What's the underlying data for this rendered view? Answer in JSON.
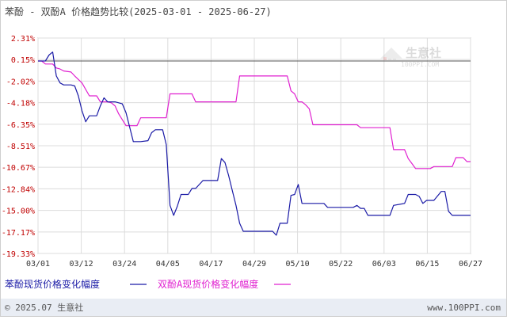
{
  "chart_data": {
    "type": "line",
    "title": "苯酚 - 双酚A 价格趋势比较(2025-03-01 - 2025-06-27)",
    "y_ticks": [
      "2.31%",
      "0.15%",
      "-2.02%",
      "-4.18%",
      "-6.35%",
      "-8.51%",
      "-10.67%",
      "-12.84%",
      "-15.00%",
      "-17.17%",
      "-19.33%"
    ],
    "y_tick_values": [
      2.31,
      0.15,
      -2.02,
      -4.18,
      -6.35,
      -8.51,
      -10.67,
      -12.84,
      -15.0,
      -17.17,
      -19.33
    ],
    "ylim": [
      -19.33,
      2.31
    ],
    "x_ticks": [
      "03/01",
      "03/12",
      "03/24",
      "04/05",
      "04/17",
      "04/29",
      "05/10",
      "05/22",
      "06/03",
      "06/15",
      "06/27"
    ],
    "xlim": [
      "2025-03-01",
      "2025-06-27"
    ],
    "grid": true,
    "legend_position": "bottom-left",
    "series": [
      {
        "name": "苯酚现货价格变化幅度",
        "color": "#1a1aa6",
        "points": [
          [
            "2025-03-01",
            0
          ],
          [
            "2025-03-02",
            0
          ],
          [
            "2025-03-03",
            0
          ],
          [
            "2025-03-04",
            0.6
          ],
          [
            "2025-03-05",
            0.9
          ],
          [
            "2025-03-06",
            -1.5
          ],
          [
            "2025-03-07",
            -2.2
          ],
          [
            "2025-03-08",
            -2.4
          ],
          [
            "2025-03-10",
            -2.4
          ],
          [
            "2025-03-11",
            -2.5
          ],
          [
            "2025-03-12",
            -3.5
          ],
          [
            "2025-03-13",
            -5.0
          ],
          [
            "2025-03-14",
            -6.1
          ],
          [
            "2025-03-15",
            -5.5
          ],
          [
            "2025-03-17",
            -5.5
          ],
          [
            "2025-03-18",
            -4.5
          ],
          [
            "2025-03-19",
            -3.7
          ],
          [
            "2025-03-20",
            -4.1
          ],
          [
            "2025-03-21",
            -4.1
          ],
          [
            "2025-03-22",
            -4.1
          ],
          [
            "2025-03-24",
            -4.3
          ],
          [
            "2025-03-25",
            -5.2
          ],
          [
            "2025-03-27",
            -8.1
          ],
          [
            "2025-03-28",
            -8.1
          ],
          [
            "2025-03-29",
            -8.1
          ],
          [
            "2025-03-31",
            -8.0
          ],
          [
            "2025-04-01",
            -7.2
          ],
          [
            "2025-04-02",
            -6.9
          ],
          [
            "2025-04-03",
            -6.9
          ],
          [
            "2025-04-04",
            -6.9
          ],
          [
            "2025-04-05",
            -8.4
          ],
          [
            "2025-04-06",
            -14.5
          ],
          [
            "2025-04-07",
            -15.5
          ],
          [
            "2025-04-08",
            -14.6
          ],
          [
            "2025-04-09",
            -13.4
          ],
          [
            "2025-04-10",
            -13.4
          ],
          [
            "2025-04-11",
            -13.4
          ],
          [
            "2025-04-12",
            -12.8
          ],
          [
            "2025-04-13",
            -12.8
          ],
          [
            "2025-04-14",
            -12.4
          ],
          [
            "2025-04-15",
            -12.0
          ],
          [
            "2025-04-16",
            -12.0
          ],
          [
            "2025-04-17",
            -12.0
          ],
          [
            "2025-04-18",
            -12.0
          ],
          [
            "2025-04-19",
            -12.0
          ],
          [
            "2025-04-20",
            -9.8
          ],
          [
            "2025-04-21",
            -10.2
          ],
          [
            "2025-04-22",
            -11.5
          ],
          [
            "2025-04-23",
            -13.0
          ],
          [
            "2025-04-24",
            -14.5
          ],
          [
            "2025-04-25",
            -16.3
          ],
          [
            "2025-04-26",
            -17.1
          ],
          [
            "2025-04-27",
            -17.1
          ],
          [
            "2025-04-30",
            -17.1
          ],
          [
            "2025-05-03",
            -17.1
          ],
          [
            "2025-05-04",
            -17.1
          ],
          [
            "2025-05-05",
            -17.5
          ],
          [
            "2025-05-06",
            -16.3
          ],
          [
            "2025-05-07",
            -16.3
          ],
          [
            "2025-05-08",
            -16.3
          ],
          [
            "2025-05-09",
            -13.5
          ],
          [
            "2025-05-10",
            -13.4
          ],
          [
            "2025-05-11",
            -12.4
          ],
          [
            "2025-05-12",
            -14.3
          ],
          [
            "2025-05-13",
            -14.3
          ],
          [
            "2025-05-18",
            -14.3
          ],
          [
            "2025-05-19",
            -14.7
          ],
          [
            "2025-05-22",
            -14.7
          ],
          [
            "2025-05-26",
            -14.7
          ],
          [
            "2025-05-27",
            -14.5
          ],
          [
            "2025-05-28",
            -14.8
          ],
          [
            "2025-05-29",
            -14.8
          ],
          [
            "2025-05-30",
            -15.5
          ],
          [
            "2025-06-05",
            -15.5
          ],
          [
            "2025-06-06",
            -14.5
          ],
          [
            "2025-06-09",
            -14.3
          ],
          [
            "2025-06-10",
            -13.4
          ],
          [
            "2025-06-12",
            -13.4
          ],
          [
            "2025-06-13",
            -13.6
          ],
          [
            "2025-06-14",
            -14.3
          ],
          [
            "2025-06-15",
            -14.0
          ],
          [
            "2025-06-17",
            -14.0
          ],
          [
            "2025-06-19",
            -13.1
          ],
          [
            "2025-06-20",
            -13.1
          ],
          [
            "2025-06-21",
            -15.1
          ],
          [
            "2025-06-22",
            -15.5
          ],
          [
            "2025-06-23",
            -15.5
          ],
          [
            "2025-06-27",
            -15.5
          ]
        ]
      },
      {
        "name": "双酚A现货价格变化幅度",
        "color": "#e020d0",
        "points": [
          [
            "2025-03-01",
            0
          ],
          [
            "2025-03-02",
            0
          ],
          [
            "2025-03-03",
            -0.3
          ],
          [
            "2025-03-05",
            -0.3
          ],
          [
            "2025-03-06",
            -0.7
          ],
          [
            "2025-03-07",
            -0.8
          ],
          [
            "2025-03-08",
            -1.0
          ],
          [
            "2025-03-10",
            -1.1
          ],
          [
            "2025-03-11",
            -1.5
          ],
          [
            "2025-03-13",
            -2.2
          ],
          [
            "2025-03-15",
            -3.5
          ],
          [
            "2025-03-17",
            -3.5
          ],
          [
            "2025-03-18",
            -4.1
          ],
          [
            "2025-03-20",
            -4.1
          ],
          [
            "2025-03-21",
            -4.2
          ],
          [
            "2025-03-22",
            -4.5
          ],
          [
            "2025-03-23",
            -5.3
          ],
          [
            "2025-03-25",
            -6.5
          ],
          [
            "2025-03-28",
            -6.5
          ],
          [
            "2025-03-29",
            -5.7
          ],
          [
            "2025-04-05",
            -5.7
          ],
          [
            "2025-04-06",
            -3.3
          ],
          [
            "2025-04-12",
            -3.3
          ],
          [
            "2025-04-13",
            -4.1
          ],
          [
            "2025-04-24",
            -4.1
          ],
          [
            "2025-04-25",
            -1.5
          ],
          [
            "2025-05-08",
            -1.5
          ],
          [
            "2025-05-09",
            -3.0
          ],
          [
            "2025-05-10",
            -3.3
          ],
          [
            "2025-05-11",
            -4.1
          ],
          [
            "2025-05-12",
            -4.1
          ],
          [
            "2025-05-13",
            -4.4
          ],
          [
            "2025-05-14",
            -4.8
          ],
          [
            "2025-05-15",
            -6.4
          ],
          [
            "2025-05-22",
            -6.4
          ],
          [
            "2025-05-27",
            -6.4
          ],
          [
            "2025-05-28",
            -6.7
          ],
          [
            "2025-06-05",
            -6.7
          ],
          [
            "2025-06-06",
            -8.9
          ],
          [
            "2025-06-09",
            -8.9
          ],
          [
            "2025-06-10",
            -9.8
          ],
          [
            "2025-06-11",
            -10.3
          ],
          [
            "2025-06-12",
            -10.8
          ],
          [
            "2025-06-16",
            -10.8
          ],
          [
            "2025-06-17",
            -10.6
          ],
          [
            "2025-06-22",
            -10.6
          ],
          [
            "2025-06-23",
            -9.7
          ],
          [
            "2025-06-25",
            -9.7
          ],
          [
            "2025-06-26",
            -10.1
          ],
          [
            "2025-06-27",
            -10.1
          ]
        ]
      }
    ]
  },
  "watermark": {
    "text": "生意社",
    "url": "100PPI.COM"
  },
  "footer": {
    "left": "© 2025.07 生意社",
    "right": "www.100PPI.com"
  }
}
